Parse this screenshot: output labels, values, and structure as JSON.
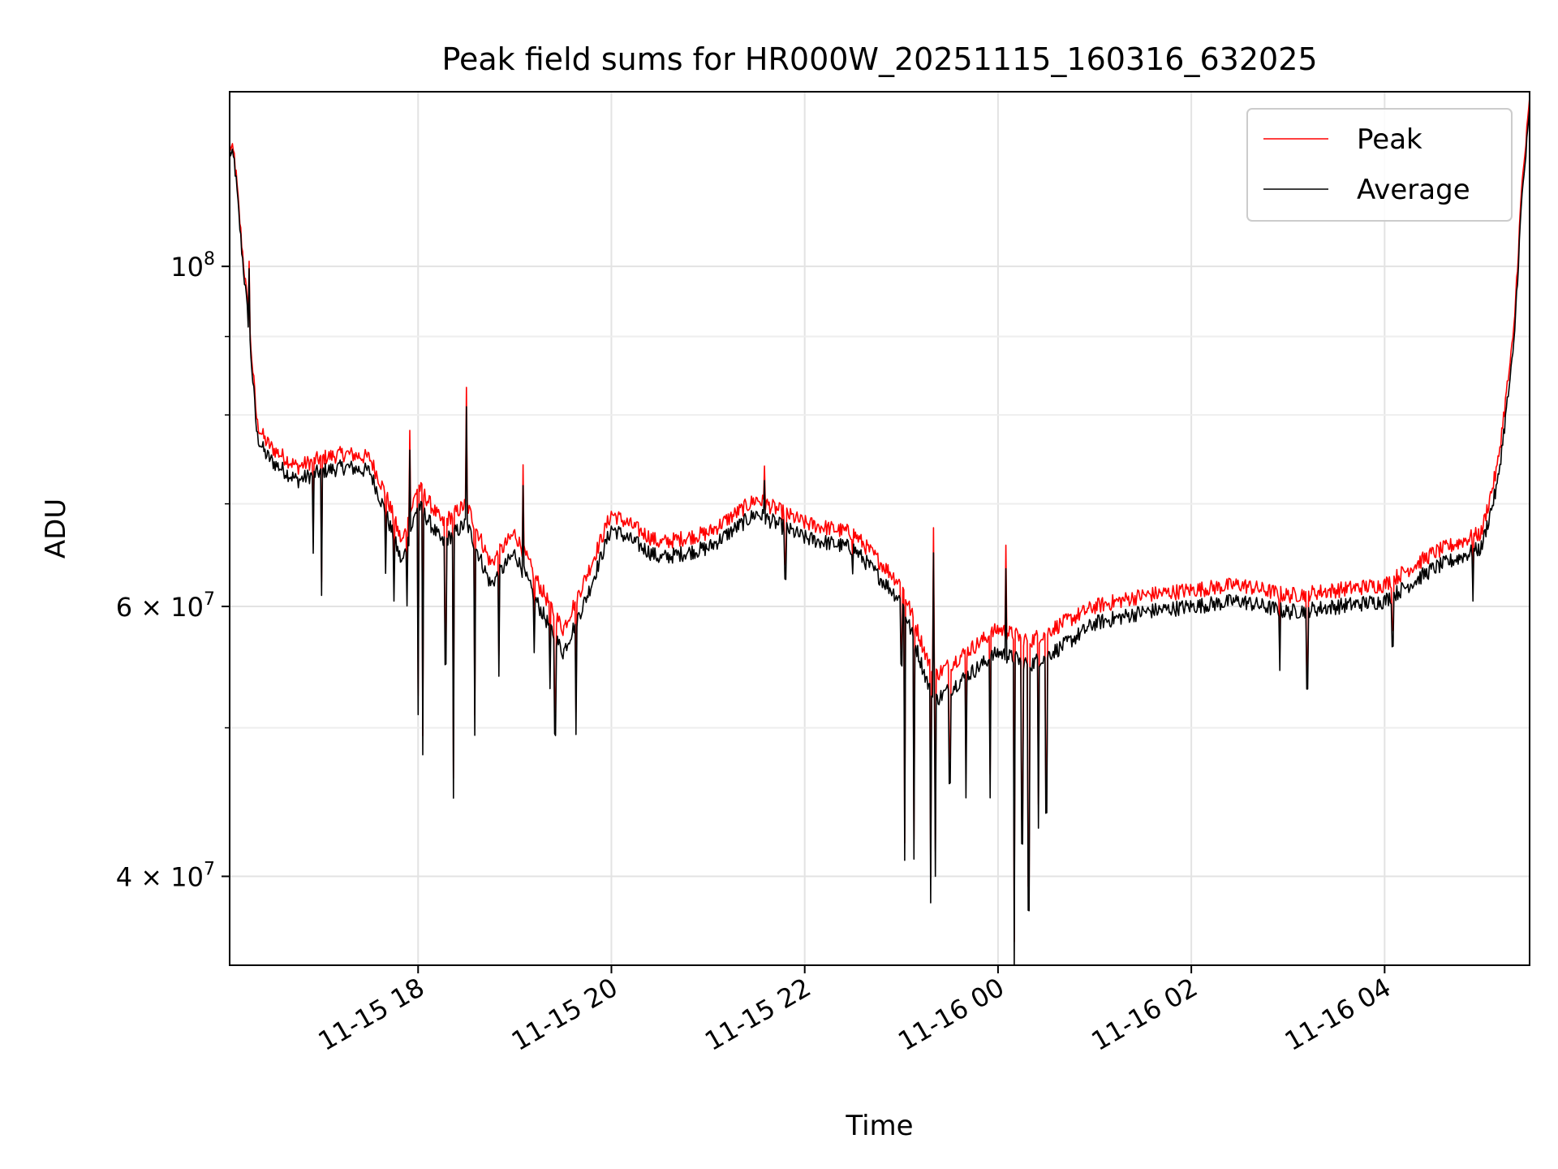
{
  "chart_data": {
    "type": "line",
    "title": "Peak field sums for HR000W_20251115_160316_632025",
    "xlabel": "Time",
    "ylabel": "ADU",
    "y_scale": "log",
    "ylim": [
      35000000,
      130000000
    ],
    "xlim": [
      "2025-11-15 16:03",
      "2025-11-16 05:30"
    ],
    "grid": true,
    "legend_position": "top-right",
    "x_ticks": [
      {
        "t": "2025-11-15 18:00",
        "label": "11-15 18"
      },
      {
        "t": "2025-11-15 20:00",
        "label": "11-15 20"
      },
      {
        "t": "2025-11-15 22:00",
        "label": "11-15 22"
      },
      {
        "t": "2025-11-16 00:00",
        "label": "11-16 00"
      },
      {
        "t": "2025-11-16 02:00",
        "label": "11-16 02"
      },
      {
        "t": "2025-11-16 04:00",
        "label": "11-16 04"
      }
    ],
    "y_ticks": [
      {
        "v": 40000000,
        "mant": "4",
        "exp": "7"
      },
      {
        "v": 60000000,
        "mant": "6",
        "exp": "7"
      },
      {
        "v": 100000000,
        "mant": "",
        "exp": "8"
      }
    ],
    "y_minor_ticks": [
      50000000,
      70000000,
      80000000,
      90000000
    ],
    "x": [
      "2025-11-15 16:03",
      "2025-11-15 16:06",
      "2025-11-15 16:10",
      "2025-11-15 16:15",
      "2025-11-15 16:20",
      "2025-11-15 16:25",
      "2025-11-15 16:30",
      "2025-11-15 16:45",
      "2025-11-15 17:00",
      "2025-11-15 17:15",
      "2025-11-15 17:30",
      "2025-11-15 17:40",
      "2025-11-15 17:50",
      "2025-11-15 18:00",
      "2025-11-15 18:15",
      "2025-11-15 18:30",
      "2025-11-15 18:45",
      "2025-11-15 19:00",
      "2025-11-15 19:15",
      "2025-11-15 19:30",
      "2025-11-15 19:45",
      "2025-11-15 20:00",
      "2025-11-15 20:30",
      "2025-11-15 21:00",
      "2025-11-15 21:30",
      "2025-11-15 22:00",
      "2025-11-15 22:30",
      "2025-11-15 23:00",
      "2025-11-15 23:20",
      "2025-11-15 23:40",
      "2025-11-16 00:00",
      "2025-11-16 00:20",
      "2025-11-16 00:40",
      "2025-11-16 01:00",
      "2025-11-16 01:30",
      "2025-11-16 02:00",
      "2025-11-16 02:30",
      "2025-11-16 03:00",
      "2025-11-16 03:30",
      "2025-11-16 04:00",
      "2025-11-16 04:30",
      "2025-11-16 05:00",
      "2025-11-16 05:10",
      "2025-11-16 05:20",
      "2025-11-16 05:25",
      "2025-11-16 05:30"
    ],
    "series": [
      {
        "name": "Peak",
        "color": "#ff0000",
        "values": [
          120000000,
          118000000,
          105000000,
          92000000,
          79000000,
          77000000,
          76000000,
          74000000,
          75000000,
          75500000,
          75000000,
          71000000,
          66000000,
          72000000,
          68000000,
          70000000,
          64000000,
          67000000,
          62000000,
          58000000,
          63000000,
          69000000,
          66000000,
          67000000,
          70500000,
          68000000,
          67000000,
          62000000,
          54000000,
          56000000,
          58000000,
          57000000,
          58500000,
          60000000,
          61000000,
          61500000,
          62000000,
          61000000,
          61500000,
          62000000,
          65000000,
          67000000,
          74000000,
          90000000,
          112000000,
          128000000
        ]
      },
      {
        "name": "Average",
        "color": "#000000",
        "values": [
          119000000,
          117000000,
          104000000,
          91000000,
          77500000,
          75500000,
          74500000,
          72500000,
          73500000,
          74000000,
          73500000,
          69000000,
          64000000,
          70000000,
          66000000,
          68000000,
          62000000,
          65000000,
          60000000,
          56000000,
          61000000,
          67500000,
          64500000,
          65500000,
          69000000,
          66500000,
          65500000,
          60500000,
          52000000,
          54000000,
          56000000,
          55000000,
          56500000,
          58500000,
          59500000,
          60000000,
          60500000,
          59500000,
          60000000,
          60500000,
          63500000,
          65500000,
          72000000,
          88000000,
          110000000,
          126000000
        ]
      }
    ],
    "noise_amplitude_fraction": 0.012,
    "dips": [
      {
        "t": "2025-11-15 16:55",
        "v": 65000000
      },
      {
        "t": "2025-11-15 17:00",
        "v": 61000000
      },
      {
        "t": "2025-11-15 17:40",
        "v": 63000000
      },
      {
        "t": "2025-11-15 17:45",
        "v": 60500000
      },
      {
        "t": "2025-11-15 17:53",
        "v": 60000000
      },
      {
        "t": "2025-11-15 18:00",
        "v": 51000000
      },
      {
        "t": "2025-11-15 18:03",
        "v": 48000000
      },
      {
        "t": "2025-11-15 18:17",
        "v": 55000000
      },
      {
        "t": "2025-11-15 18:22",
        "v": 45000000
      },
      {
        "t": "2025-11-15 18:35",
        "v": 49500000
      },
      {
        "t": "2025-11-15 18:50",
        "v": 54000000
      },
      {
        "t": "2025-11-15 19:12",
        "v": 56000000
      },
      {
        "t": "2025-11-15 19:22",
        "v": 53000000
      },
      {
        "t": "2025-11-15 19:25",
        "v": 49500000
      },
      {
        "t": "2025-11-15 19:38",
        "v": 49500000
      },
      {
        "t": "2025-11-15 21:48",
        "v": 62500000
      },
      {
        "t": "2025-11-15 22:30",
        "v": 63000000
      },
      {
        "t": "2025-11-15 23:00",
        "v": 55000000
      },
      {
        "t": "2025-11-15 23:02",
        "v": 41000000
      },
      {
        "t": "2025-11-15 23:08",
        "v": 41000000
      },
      {
        "t": "2025-11-15 23:18",
        "v": 38500000
      },
      {
        "t": "2025-11-15 23:21",
        "v": 40000000
      },
      {
        "t": "2025-11-15 23:30",
        "v": 46000000
      },
      {
        "t": "2025-11-15 23:40",
        "v": 45000000
      },
      {
        "t": "2025-11-15 23:55",
        "v": 45000000
      },
      {
        "t": "2025-11-16 00:10",
        "v": 35000000
      },
      {
        "t": "2025-11-16 00:15",
        "v": 42000000
      },
      {
        "t": "2025-11-16 00:19",
        "v": 38000000
      },
      {
        "t": "2025-11-16 00:25",
        "v": 43000000
      },
      {
        "t": "2025-11-16 00:30",
        "v": 44000000
      },
      {
        "t": "2025-11-16 02:55",
        "v": 54500000
      },
      {
        "t": "2025-11-16 03:12",
        "v": 53000000
      },
      {
        "t": "2025-11-16 04:05",
        "v": 56500000
      },
      {
        "t": "2025-11-16 04:55",
        "v": 60500000
      }
    ],
    "spikes": [
      {
        "t": "2025-11-15 16:15",
        "v": 100000000
      },
      {
        "t": "2025-11-15 17:55",
        "v": 76000000
      },
      {
        "t": "2025-11-15 18:30",
        "v": 81000000
      },
      {
        "t": "2025-11-15 19:05",
        "v": 72000000
      },
      {
        "t": "2025-11-15 21:35",
        "v": 72500000
      },
      {
        "t": "2025-11-15 23:20",
        "v": 65000000
      },
      {
        "t": "2025-11-16 00:05",
        "v": 63500000
      }
    ]
  }
}
